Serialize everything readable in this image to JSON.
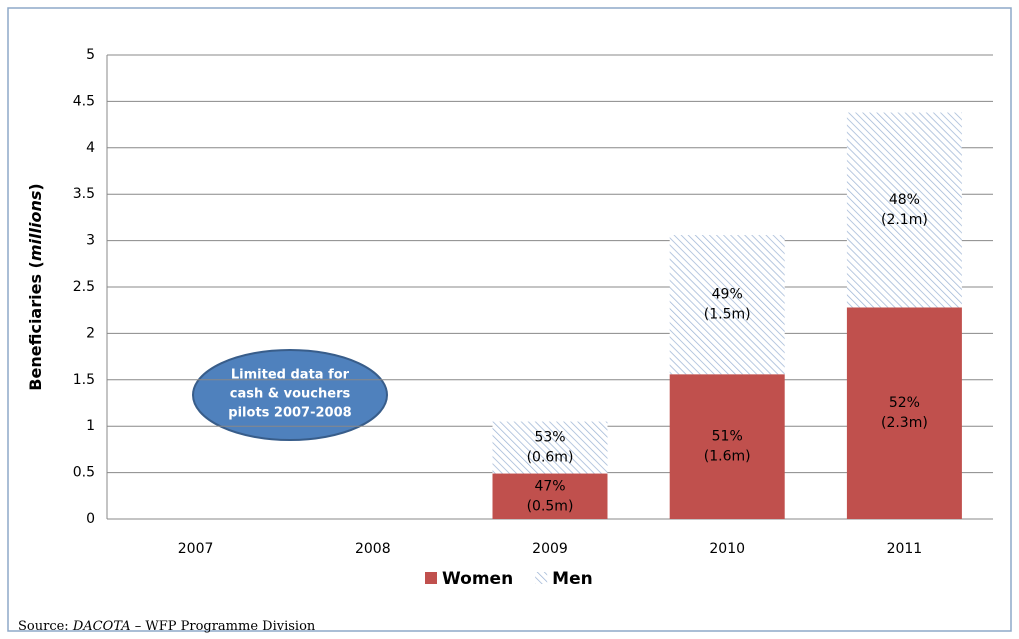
{
  "chart_data": {
    "type": "bar",
    "stacked": true,
    "categories": [
      "2007",
      "2008",
      "2009",
      "2010",
      "2011"
    ],
    "series": [
      {
        "name": "Women",
        "color": "#c0504d",
        "values": [
          null,
          null,
          0.49,
          1.56,
          2.28
        ],
        "value_labels": [
          null,
          null,
          "47% (0.5m)",
          "51% (1.6m)",
          "52% (2.3m)"
        ]
      },
      {
        "name": "Men",
        "color": "#a6bddb",
        "hatch": true,
        "values": [
          null,
          null,
          0.56,
          1.5,
          2.1
        ],
        "value_labels": [
          null,
          null,
          "53% (0.6m)",
          "49% (1.5m)",
          "48% (2.1m)"
        ]
      }
    ],
    "ylabel": [
      "Beneficiaries (",
      "millions",
      ")"
    ],
    "ylim": [
      0,
      5
    ],
    "yticks": [
      0,
      0.5,
      1,
      1.5,
      2,
      2.5,
      3,
      3.5,
      4,
      4.5,
      5
    ],
    "grid": true,
    "legend": "bottom",
    "annotation": [
      "Limited data for",
      "cash & vouchers",
      "pilots 2007-2008"
    ],
    "source": [
      "Source: ",
      "DACOTA",
      " – WFP Programme Division"
    ]
  }
}
